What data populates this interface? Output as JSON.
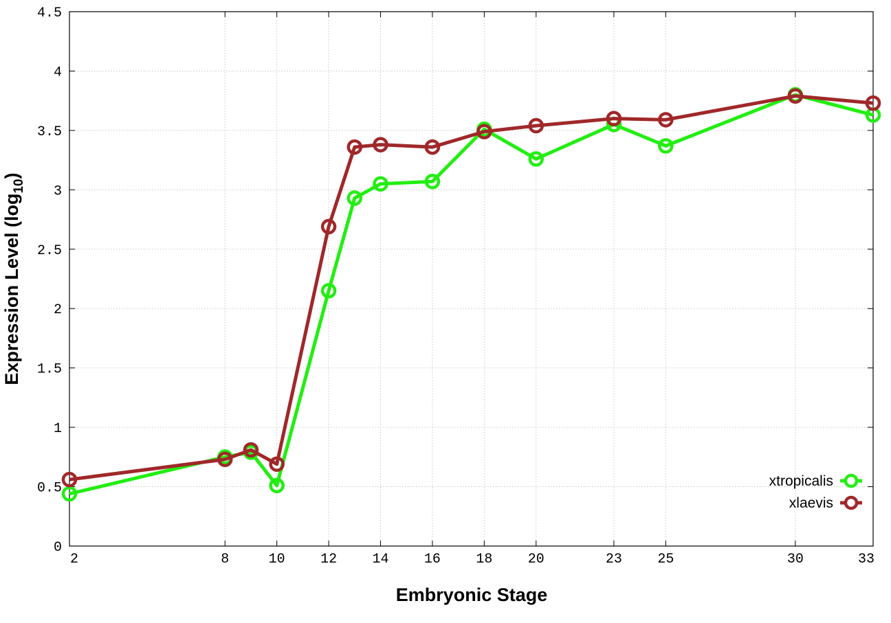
{
  "chart_data": {
    "type": "line",
    "xlabel": "Embryonic Stage",
    "ylabel": "Expression Level (log",
    "ylabel_subscript": "10",
    "ylabel_close": ")",
    "xlim": [
      2,
      33
    ],
    "ylim": [
      0,
      4.5
    ],
    "x_ticks": [
      2,
      8,
      10,
      12,
      14,
      16,
      18,
      20,
      23,
      25,
      30,
      33
    ],
    "y_ticks": [
      0,
      0.5,
      1,
      1.5,
      2,
      2.5,
      3,
      3.5,
      4,
      4.5
    ],
    "y_tick_labels": [
      "0",
      "0.5",
      "1",
      "1.5",
      "2",
      "2.5",
      "3",
      "3.5",
      "4",
      "4.5"
    ],
    "grid": true,
    "legend_position": "bottom-right",
    "series": [
      {
        "name": "xtropicalis",
        "color": "#22ee11",
        "x": [
          2,
          8,
          9,
          10,
          12,
          13,
          14,
          16,
          18,
          20,
          23,
          25,
          30,
          33
        ],
        "y": [
          0.44,
          0.75,
          0.79,
          0.51,
          2.15,
          2.93,
          3.05,
          3.07,
          3.51,
          3.26,
          3.55,
          3.37,
          3.8,
          3.63
        ]
      },
      {
        "name": "xlaevis",
        "color": "#a0282a",
        "x": [
          2,
          8,
          9,
          10,
          12,
          13,
          14,
          16,
          18,
          20,
          23,
          25,
          30,
          33
        ],
        "y": [
          0.56,
          0.73,
          0.81,
          0.69,
          2.69,
          3.36,
          3.38,
          3.36,
          3.49,
          3.54,
          3.6,
          3.59,
          3.79,
          3.73
        ]
      }
    ]
  }
}
